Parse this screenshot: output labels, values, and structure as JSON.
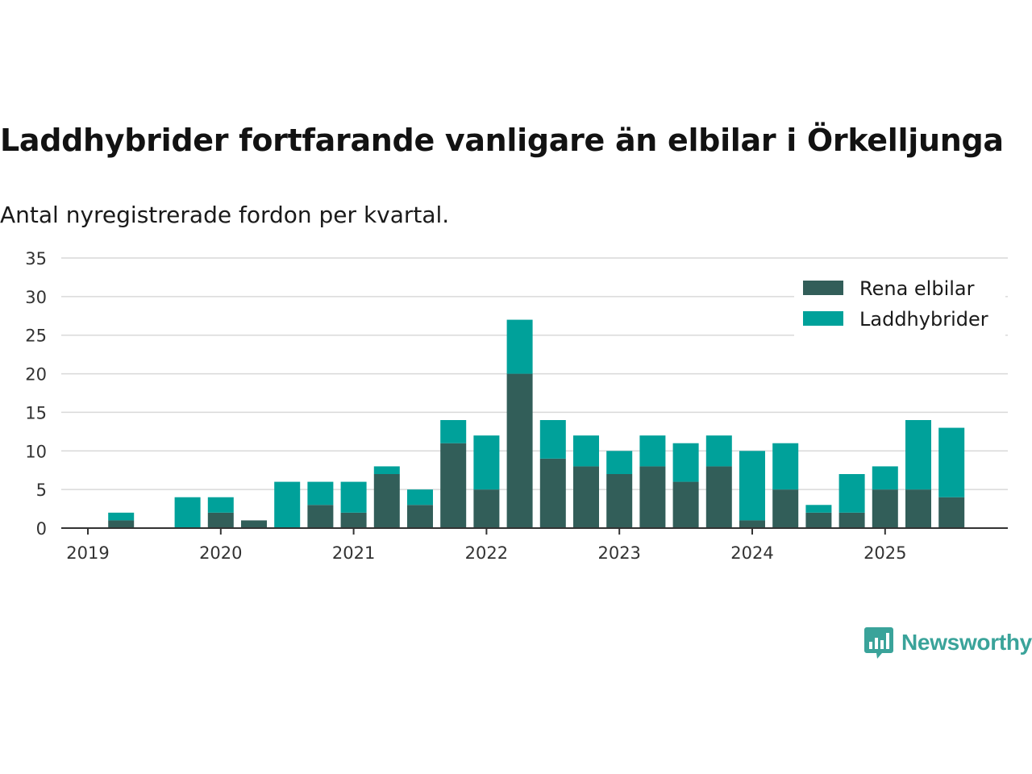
{
  "title": "Laddhybrider fortfarande vanligare än elbilar i Örkelljunga",
  "subtitle": "Antal nyregistrerade fordon per kvartal.",
  "brand": {
    "name": "Newsworthy",
    "color": "#3aa39a",
    "icon": "bar-chart-speech-bubble-icon"
  },
  "colors": {
    "rena": "#325e59",
    "ladd": "#00a19a",
    "grid": "#d9d9d9",
    "axis": "#333333"
  },
  "chart_data": {
    "type": "bar",
    "stacked": true,
    "title": "Laddhybrider fortfarande vanligare än elbilar i Örkelljunga",
    "subtitle": "Antal nyregistrerade fordon per kvartal.",
    "xlabel": "",
    "ylabel": "",
    "ylim": [
      0,
      35
    ],
    "yticks": [
      0,
      5,
      10,
      15,
      20,
      25,
      30,
      35
    ],
    "grid": true,
    "legend_position": "top-right",
    "x_tick_labels": [
      "2019",
      "2020",
      "2021",
      "2022",
      "2023",
      "2024",
      "2025"
    ],
    "categories": [
      "2019 Q1",
      "2019 Q2",
      "2019 Q3",
      "2019 Q4",
      "2020 Q1",
      "2020 Q2",
      "2020 Q3",
      "2020 Q4",
      "2021 Q1",
      "2021 Q2",
      "2021 Q3",
      "2021 Q4",
      "2022 Q1",
      "2022 Q2",
      "2022 Q3",
      "2022 Q4",
      "2023 Q1",
      "2023 Q2",
      "2023 Q3",
      "2023 Q4",
      "2024 Q1",
      "2024 Q2",
      "2024 Q3",
      "2024 Q4",
      "2025 Q1",
      "2025 Q2",
      "2025 Q3"
    ],
    "series": [
      {
        "name": "Rena elbilar",
        "values": [
          0,
          1,
          0,
          0,
          2,
          1,
          0,
          3,
          2,
          7,
          3,
          11,
          5,
          20,
          9,
          8,
          7,
          8,
          6,
          8,
          1,
          5,
          2,
          2,
          5,
          5,
          4
        ]
      },
      {
        "name": "Laddhybrider",
        "values": [
          0,
          1,
          0,
          4,
          2,
          0,
          6,
          3,
          4,
          1,
          2,
          3,
          7,
          7,
          5,
          4,
          3,
          4,
          5,
          4,
          9,
          6,
          1,
          5,
          3,
          9,
          9
        ]
      }
    ]
  }
}
